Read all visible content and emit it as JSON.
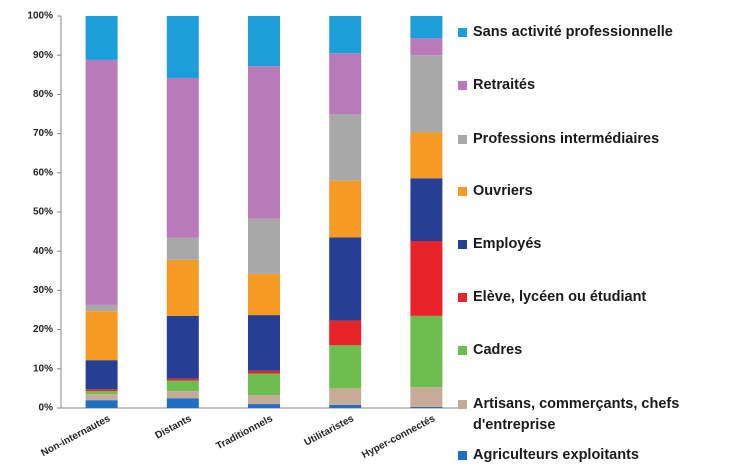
{
  "chart_data": {
    "type": "stacked_bar",
    "categories": [
      "Non-internautes",
      "Distants",
      "Traditionnels",
      "Utilitaristes",
      "Hyper-connectés"
    ],
    "series": [
      {
        "name": "Agriculteurs exploitants",
        "color": "#1f6fc4",
        "values": [
          2,
          2.5,
          1,
          0.8,
          0.3
        ]
      },
      {
        "name": "Artisans, commerçants, chefs d'entreprise",
        "color": "#c8ab96",
        "values": [
          1.5,
          1.8,
          2.3,
          4.2,
          5
        ]
      },
      {
        "name": "Cadres",
        "color": "#6cbf4f",
        "values": [
          0.8,
          2.7,
          5.5,
          11,
          18.2
        ]
      },
      {
        "name": "Elève, lycéen ou étudiant",
        "color": "#e8232a",
        "values": [
          0.5,
          0.5,
          0.7,
          6.3,
          19.1
        ]
      },
      {
        "name": "Employés",
        "color": "#253f94",
        "values": [
          7.4,
          16,
          14.2,
          21.2,
          16
        ]
      },
      {
        "name": "Ouvriers",
        "color": "#f59a23",
        "values": [
          12.5,
          14.3,
          10.5,
          14.5,
          11.7
        ]
      },
      {
        "name": "Professions intermédiaires",
        "color": "#a8a8a8",
        "values": [
          1.6,
          5.6,
          14.1,
          17,
          19.7
        ]
      },
      {
        "name": "Retraités",
        "color": "#b87ab8",
        "values": [
          62.5,
          40.8,
          38.9,
          15.5,
          4.3
        ]
      },
      {
        "name": "Sans activité professionnelle",
        "color": "#1a9fd9",
        "values": [
          11.2,
          15.8,
          12.8,
          9.5,
          5.7
        ]
      }
    ],
    "ylim": [
      0,
      100
    ],
    "yticks": [
      {
        "value": 0,
        "label": "0%"
      },
      {
        "value": 10,
        "label": "10%"
      },
      {
        "value": 20,
        "label": "20%"
      },
      {
        "value": 30,
        "label": "30%"
      },
      {
        "value": 40,
        "label": "40%"
      },
      {
        "value": 50,
        "label": "50%"
      },
      {
        "value": 60,
        "label": "60%"
      },
      {
        "value": 70,
        "label": "70%"
      },
      {
        "value": 80,
        "label": "80%"
      },
      {
        "value": 90,
        "label": "90%"
      },
      {
        "value": 100,
        "label": "100%"
      }
    ],
    "legend": "right"
  }
}
